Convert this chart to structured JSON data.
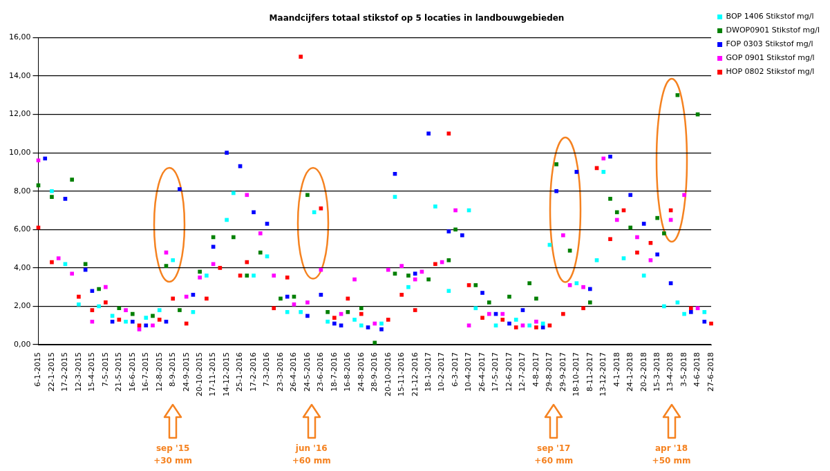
{
  "chart_data": {
    "type": "scatter",
    "title": "Maandcijfers totaal stikstof op 5 locaties in landbouwgebieden",
    "categories": [
      "6-1-2015",
      null,
      "22-1-2015",
      null,
      "17-2-2015",
      null,
      "12-3-2015",
      null,
      "15-4-2015",
      null,
      "7-5-2015",
      null,
      "21-5-2015",
      null,
      "16-6-2015",
      null,
      "16-7-2015",
      null,
      "12-8-2015",
      null,
      "8-9-2015",
      null,
      "24-9-2015",
      null,
      "20-10-2015",
      null,
      "17-11-2015",
      null,
      "14-12-2015",
      null,
      "25-1-2016",
      null,
      "17-2-2016",
      null,
      "7-3-2016",
      null,
      "23-3-2016",
      null,
      "26-4-2016",
      null,
      "24-5-2016",
      null,
      "23-6-2016",
      null,
      "18-7-2016",
      null,
      "16-8-2016",
      null,
      "24-8-2016",
      null,
      "28-9-2016",
      null,
      "20-10-2016",
      null,
      "15-11-2016",
      null,
      "21-12-2016",
      null,
      "18-1-2017",
      null,
      "10-2-2017",
      null,
      "6-3-2017",
      null,
      "10-4-2017",
      null,
      "26-4-2017",
      null,
      "17-5-2017",
      null,
      "12-6-2017",
      null,
      "12-7-2017",
      null,
      "4-8-2017",
      null,
      "29-8-2017",
      null,
      "29-9-2017",
      null,
      "18-10-2017",
      null,
      "8-11-2017",
      null,
      "13-12-2017",
      null,
      "4-1-2018",
      null,
      "24-1-2018",
      null,
      "20-2-2018",
      null,
      "15-3-2018",
      null,
      "13-4-2018",
      null,
      "3-5-2018",
      null,
      "4-6-2018",
      null,
      "27-6-2018"
    ],
    "series": [
      {
        "name": "BOP 1406 Stikstof mg/l",
        "color": "#00ffff",
        "values": [
          null,
          null,
          8.0,
          null,
          4.2,
          null,
          2.1,
          null,
          null,
          2.0,
          null,
          1.5,
          null,
          1.2,
          null,
          null,
          1.4,
          null,
          1.8,
          null,
          4.4,
          null,
          null,
          1.7,
          null,
          3.6,
          null,
          null,
          6.5,
          7.9,
          null,
          null,
          3.6,
          null,
          4.6,
          null,
          null,
          1.7,
          null,
          1.7,
          null,
          6.9,
          null,
          1.2,
          null,
          null,
          null,
          1.3,
          1.0,
          null,
          null,
          1.1,
          null,
          7.7,
          null,
          3.0,
          null,
          null,
          null,
          7.2,
          null,
          2.8,
          null,
          null,
          7.0,
          1.9,
          null,
          null,
          1.0,
          null,
          null,
          1.3,
          null,
          1.0,
          null,
          1.1,
          5.2,
          null,
          null,
          null,
          3.2,
          null,
          null,
          4.4,
          9.0,
          null,
          null,
          4.5,
          null,
          null,
          3.6,
          null,
          null,
          2.0,
          null,
          2.2,
          1.6,
          null,
          null,
          1.7,
          null
        ]
      },
      {
        "name": "DWOP0901 Stikstof mg/l",
        "color": "#008000",
        "values": [
          8.3,
          null,
          7.7,
          null,
          null,
          8.6,
          null,
          4.2,
          null,
          2.9,
          null,
          null,
          1.9,
          null,
          1.6,
          null,
          null,
          1.5,
          null,
          4.1,
          null,
          1.8,
          null,
          null,
          3.8,
          null,
          5.6,
          null,
          null,
          5.6,
          null,
          3.6,
          null,
          4.8,
          null,
          null,
          2.4,
          null,
          2.5,
          null,
          7.8,
          null,
          null,
          1.7,
          null,
          null,
          1.7,
          null,
          1.9,
          null,
          0.1,
          null,
          null,
          3.7,
          null,
          3.6,
          null,
          null,
          3.4,
          null,
          null,
          4.4,
          6.0,
          null,
          null,
          3.1,
          null,
          2.2,
          null,
          null,
          2.5,
          null,
          null,
          3.2,
          2.4,
          null,
          null,
          9.4,
          null,
          4.9,
          null,
          null,
          2.2,
          null,
          null,
          7.6,
          6.9,
          null,
          6.1,
          null,
          null,
          null,
          6.6,
          5.8,
          null,
          13.0,
          null,
          null,
          12.0,
          null,
          null
        ]
      },
      {
        "name": "FOP 0303 Stikstof mg/l",
        "color": "#0000ff",
        "values": [
          null,
          9.7,
          null,
          null,
          7.6,
          null,
          null,
          3.9,
          2.8,
          null,
          null,
          1.2,
          null,
          null,
          1.2,
          null,
          1.0,
          null,
          null,
          1.2,
          null,
          8.1,
          null,
          2.6,
          null,
          null,
          5.1,
          null,
          10.0,
          null,
          9.3,
          null,
          6.9,
          null,
          6.3,
          null,
          null,
          2.5,
          null,
          null,
          1.5,
          null,
          2.6,
          null,
          1.1,
          1.0,
          null,
          null,
          null,
          0.9,
          null,
          0.8,
          null,
          8.9,
          null,
          null,
          3.7,
          null,
          11.0,
          null,
          null,
          5.9,
          null,
          5.7,
          null,
          null,
          2.7,
          null,
          1.6,
          null,
          1.1,
          null,
          1.8,
          null,
          null,
          0.9,
          null,
          8.0,
          null,
          null,
          9.0,
          null,
          2.9,
          null,
          null,
          9.8,
          null,
          null,
          7.8,
          null,
          6.3,
          null,
          4.7,
          null,
          3.2,
          null,
          null,
          1.7,
          null,
          1.2,
          null
        ]
      },
      {
        "name": "GOP 0901 Stikstof mg/l",
        "color": "#ff00ff",
        "values": [
          9.6,
          null,
          null,
          4.5,
          null,
          3.7,
          null,
          null,
          1.2,
          null,
          3.0,
          null,
          null,
          1.8,
          null,
          0.8,
          null,
          1.0,
          null,
          4.8,
          null,
          null,
          2.5,
          null,
          3.5,
          null,
          4.2,
          null,
          null,
          null,
          null,
          7.8,
          null,
          5.8,
          null,
          3.6,
          null,
          null,
          2.1,
          null,
          2.2,
          null,
          3.9,
          null,
          null,
          1.6,
          null,
          3.4,
          null,
          null,
          1.1,
          null,
          3.9,
          null,
          4.1,
          null,
          3.4,
          3.8,
          null,
          null,
          4.3,
          null,
          7.0,
          null,
          1.0,
          null,
          null,
          1.6,
          null,
          1.6,
          null,
          null,
          1.0,
          null,
          1.2,
          null,
          null,
          null,
          5.7,
          3.1,
          null,
          3.0,
          null,
          null,
          9.7,
          null,
          6.5,
          null,
          null,
          5.6,
          null,
          4.4,
          null,
          null,
          6.5,
          null,
          7.8,
          null,
          1.9,
          null,
          null
        ]
      },
      {
        "name": "HOP 0802 Stikstof mg/l",
        "color": "#ff0000",
        "values": [
          6.1,
          null,
          4.3,
          null,
          null,
          null,
          2.5,
          null,
          1.8,
          null,
          2.2,
          null,
          1.3,
          null,
          null,
          1.0,
          null,
          null,
          1.3,
          null,
          2.4,
          null,
          1.1,
          null,
          null,
          2.4,
          null,
          4.0,
          null,
          null,
          3.6,
          4.3,
          null,
          null,
          null,
          1.9,
          null,
          3.5,
          null,
          15.0,
          null,
          null,
          7.1,
          null,
          1.4,
          null,
          2.4,
          null,
          1.6,
          null,
          null,
          null,
          1.3,
          null,
          2.6,
          null,
          1.8,
          null,
          null,
          4.2,
          null,
          11.0,
          null,
          null,
          3.1,
          null,
          1.4,
          null,
          null,
          1.3,
          null,
          0.9,
          null,
          null,
          0.9,
          null,
          1.0,
          null,
          1.6,
          null,
          null,
          1.9,
          null,
          9.2,
          null,
          5.5,
          null,
          7.0,
          null,
          4.8,
          null,
          5.3,
          null,
          null,
          7.0,
          null,
          null,
          1.9,
          null,
          null,
          1.1
        ]
      }
    ],
    "ylim": [
      0,
      16
    ],
    "yticks": [
      {
        "value": 0,
        "label": "0,00"
      },
      {
        "value": 2,
        "label": "2,00"
      },
      {
        "value": 4,
        "label": "4,00"
      },
      {
        "value": 6,
        "label": "6,00"
      },
      {
        "value": 8,
        "label": "8,00"
      },
      {
        "value": 10,
        "label": "10,00"
      },
      {
        "value": 12,
        "label": "12,00"
      },
      {
        "value": 14,
        "label": "14,00"
      },
      {
        "value": 16,
        "label": "16,00"
      }
    ],
    "grid": "y",
    "legend": "top right",
    "marker": "square",
    "annotations": [
      "sep '15\n+30 mm",
      "jun '16\n+60 mm",
      "sep '17\n+60 mm",
      "apr '18\n+50 mm"
    ]
  }
}
